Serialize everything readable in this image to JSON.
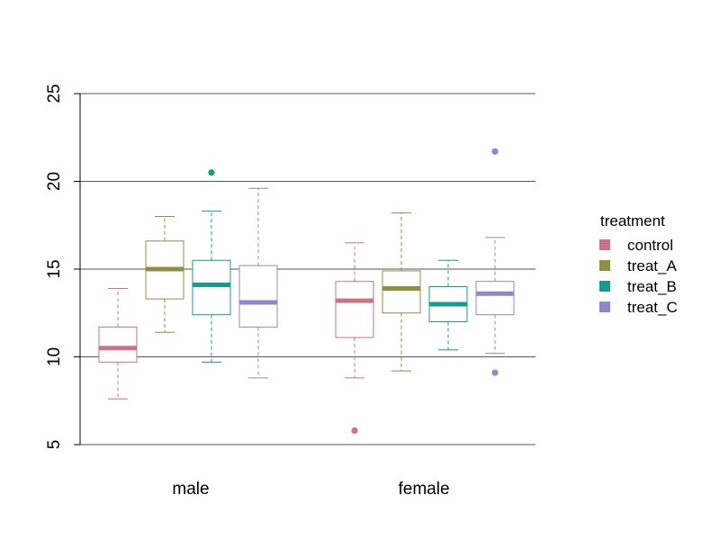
{
  "chart_data": {
    "type": "boxplot",
    "title": "",
    "xlabel": "",
    "ylabel": "",
    "ylim": [
      5,
      25
    ],
    "yticks": [
      5,
      10,
      15,
      20,
      25
    ],
    "ytick_labels": [
      "5",
      "10",
      "15",
      "20",
      "25"
    ],
    "grid": "horizontal lines at y ticks",
    "categories": [
      "male",
      "female"
    ],
    "legend": {
      "title": "treatment",
      "placement": "right",
      "entries": [
        "control",
        "treat_A",
        "treat_B",
        "treat_C"
      ]
    },
    "series": [
      {
        "name": "control",
        "color": "#C97385",
        "boxes": [
          {
            "category": "male",
            "whisker_low": 7.6,
            "q1": 9.7,
            "median": 10.5,
            "q3": 11.7,
            "whisker_high": 13.9,
            "outliers": []
          },
          {
            "category": "female",
            "whisker_low": 8.8,
            "q1": 11.1,
            "median": 13.2,
            "q3": 14.3,
            "whisker_high": 16.5,
            "outliers": [
              5.8
            ]
          }
        ]
      },
      {
        "name": "treat_A",
        "color": "#8D9040",
        "boxes": [
          {
            "category": "male",
            "whisker_low": 11.4,
            "q1": 13.3,
            "median": 15.0,
            "q3": 16.6,
            "whisker_high": 18.0,
            "outliers": []
          },
          {
            "category": "female",
            "whisker_low": 9.2,
            "q1": 12.5,
            "median": 13.9,
            "q3": 14.9,
            "whisker_high": 18.2,
            "outliers": []
          }
        ]
      },
      {
        "name": "treat_B",
        "color": "#149C8F",
        "boxes": [
          {
            "category": "male",
            "whisker_low": 9.7,
            "q1": 12.4,
            "median": 14.1,
            "q3": 15.5,
            "whisker_high": 18.3,
            "outliers": [
              20.5
            ]
          },
          {
            "category": "female",
            "whisker_low": 10.4,
            "q1": 12.0,
            "median": 13.0,
            "q3": 14.0,
            "whisker_high": 15.5,
            "outliers": []
          }
        ]
      },
      {
        "name": "treat_C",
        "color": "#8E87C9",
        "boxes": [
          {
            "category": "male",
            "whisker_low": 8.8,
            "q1": 11.7,
            "median": 13.1,
            "q3": 15.2,
            "whisker_high": 19.6,
            "outliers": []
          },
          {
            "category": "female",
            "whisker_low": 10.2,
            "q1": 12.4,
            "median": 13.6,
            "q3": 14.3,
            "whisker_high": 16.8,
            "outliers": [
              21.7,
              9.1
            ]
          }
        ]
      }
    ]
  }
}
